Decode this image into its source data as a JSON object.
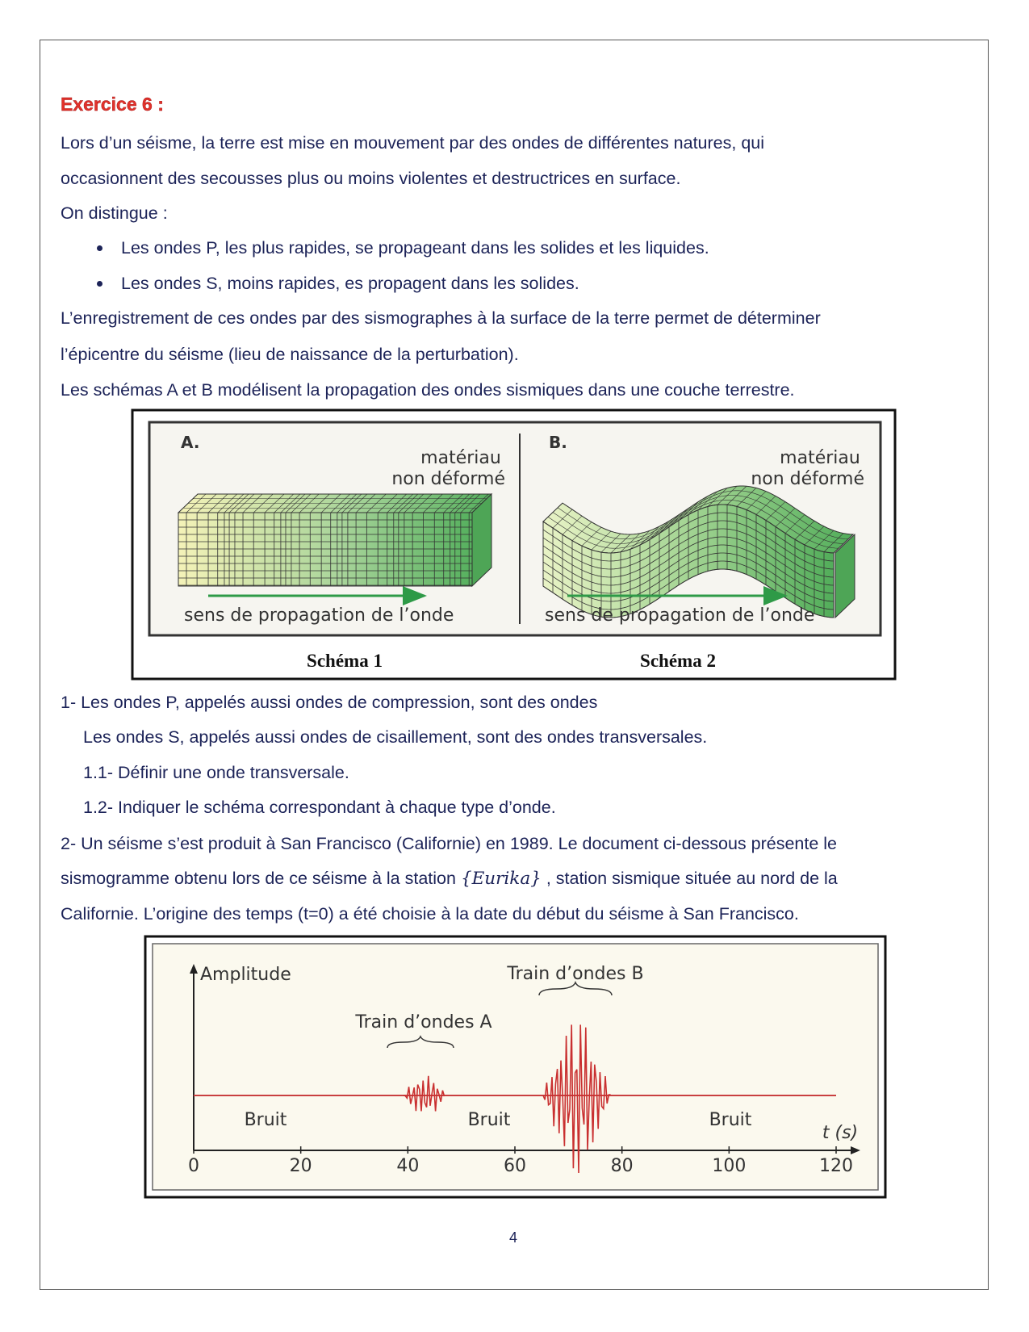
{
  "title": "Exercice 6 :",
  "intro": [
    "Lors d’un séisme, la terre est mise en mouvement par des ondes de différentes natures, qui",
    "occasionnent des secousses plus ou moins violentes et destructrices en surface.",
    "On distingue :"
  ],
  "bullets": [
    "Les ondes P, les plus rapides, se propageant dans les solides et les liquides.",
    "Les ondes S, moins rapides, es propagent dans les solides."
  ],
  "context": [
    "L’enregistrement de ces ondes par des sismographes à la surface de la terre permet de déterminer",
    "l’épicentre du séisme (lieu de naissance de la perturbation).",
    "Les schémas A et B modélisent la propagation des ondes sismiques dans une couche terrestre."
  ],
  "figure1": {
    "panels": [
      {
        "letter": "A.",
        "material": [
          "matériau",
          "non déformé"
        ],
        "direction": "sens de propagation de l’onde",
        "caption": "Schéma 1"
      },
      {
        "letter": "B.",
        "material": [
          "matériau",
          "non déformé"
        ],
        "direction": "sens de propagation de l’onde",
        "caption": "Schéma 2"
      }
    ]
  },
  "questions": [
    "1- Les ondes P, appelés aussi ondes de compression, sont des ondes",
    "Les ondes S, appelés aussi ondes de cisaillement, sont des ondes transversales.",
    "1.1- Définir une onde transversale.",
    "1.2- Indiquer le schéma correspondant à chaque type d’onde.",
    "2- Un séisme s’est produit à San Francisco (Californie) en 1989. Le document ci-dessous présente le"
  ],
  "question2_line2": {
    "before": "sismogramme obtenu lors de ce séisme à la station",
    "math": "{Eurika}",
    "after": ", station sismique située au nord de la"
  },
  "question2_line3": "Californie. L’origine des temps (t=0) a été choisie à la date du début  du séisme à San Francisco.",
  "figure2": {
    "y_label": "Amplitude",
    "x_label": "t (s)",
    "xticks": [
      0,
      20,
      40,
      60,
      80,
      100,
      120
    ],
    "train_a": "Train d’ondes A",
    "train_b": "Train d’ondes B",
    "noise_labels": [
      "Bruit",
      "Bruit",
      "Bruit"
    ]
  },
  "page_number": "4"
}
